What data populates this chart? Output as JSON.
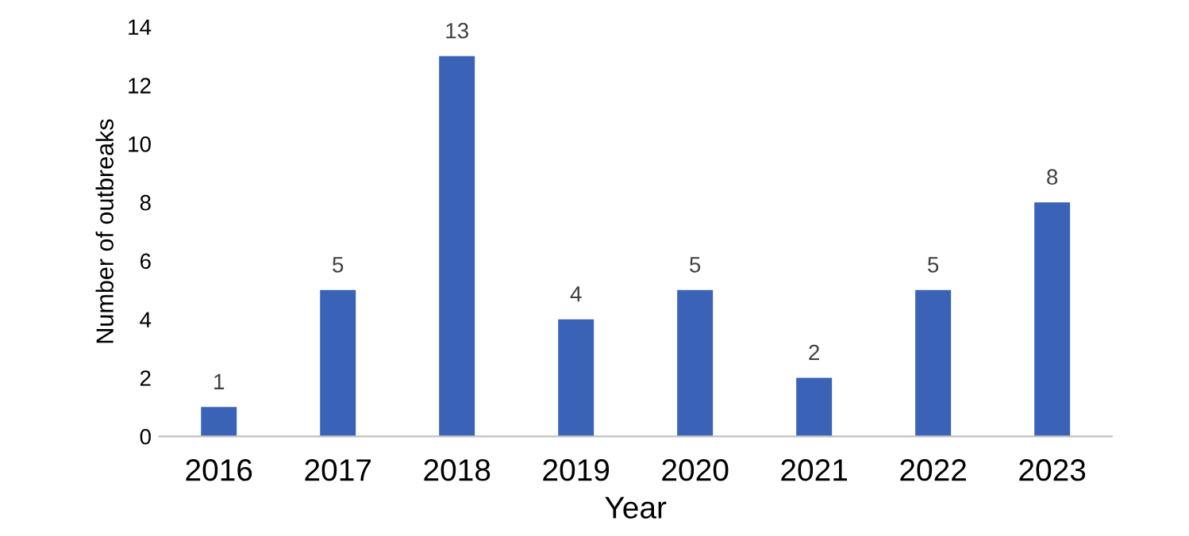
{
  "chart_data": {
    "type": "bar",
    "xlabel": "Year",
    "ylabel": "Number of outbreaks",
    "categories": [
      "2016",
      "2017",
      "2018",
      "2019",
      "2020",
      "2021",
      "2022",
      "2023"
    ],
    "values": [
      1,
      5,
      13,
      4,
      5,
      2,
      5,
      8
    ],
    "color": "#3a63b8",
    "ylim": [
      0,
      14
    ],
    "yticks": [
      0,
      2,
      4,
      6,
      8,
      10,
      12,
      14
    ],
    "grid": false,
    "legend": false,
    "data_labels": true
  }
}
